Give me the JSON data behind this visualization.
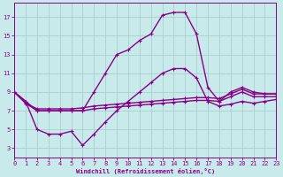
{
  "background_color": "#c8eaea",
  "grid_color": "#aacfcf",
  "line_color": "#880088",
  "xlabel": "Windchill (Refroidissement éolien,°C)",
  "xlim": [
    0,
    23
  ],
  "ylim": [
    2,
    18.5
  ],
  "xticks": [
    0,
    1,
    2,
    3,
    4,
    5,
    6,
    7,
    8,
    9,
    10,
    11,
    12,
    13,
    14,
    15,
    16,
    17,
    18,
    19,
    20,
    21,
    22,
    23
  ],
  "yticks": [
    3,
    5,
    7,
    9,
    11,
    13,
    15,
    17
  ],
  "curve_peak_x": [
    0,
    1,
    2,
    3,
    4,
    5,
    6,
    7,
    8,
    9,
    10,
    11,
    12,
    13,
    14,
    15,
    16,
    17,
    18,
    19,
    20,
    21,
    22,
    23
  ],
  "curve_peak_y": [
    9.0,
    8.0,
    7.0,
    7.0,
    7.0,
    7.0,
    7.0,
    9.0,
    11.0,
    13.0,
    13.5,
    14.5,
    15.2,
    17.2,
    17.5,
    17.5,
    15.2,
    9.5,
    8.0,
    9.0,
    9.5,
    9.0,
    8.8,
    8.8
  ],
  "curve_mid_x": [
    0,
    1,
    2,
    3,
    4,
    5,
    6,
    7,
    8,
    9,
    10,
    11,
    12,
    13,
    14,
    15,
    16,
    17,
    18,
    19,
    20,
    21,
    22,
    23
  ],
  "curve_mid_y": [
    9.0,
    8.0,
    5.0,
    4.5,
    4.5,
    4.8,
    3.3,
    4.5,
    5.8,
    7.0,
    8.0,
    9.0,
    10.0,
    11.0,
    11.5,
    11.5,
    10.5,
    8.0,
    7.5,
    7.7,
    8.0,
    7.8,
    8.0,
    8.2
  ],
  "curve_flat1_x": [
    0,
    1,
    2,
    3,
    4,
    5,
    6,
    7,
    8,
    9,
    10,
    11,
    12,
    13,
    14,
    15,
    16,
    17,
    18,
    19,
    20,
    21,
    22,
    23
  ],
  "curve_flat1_y": [
    9.0,
    7.8,
    7.2,
    7.2,
    7.2,
    7.2,
    7.3,
    7.5,
    7.6,
    7.7,
    7.8,
    7.9,
    8.0,
    8.1,
    8.2,
    8.3,
    8.4,
    8.4,
    8.3,
    8.8,
    9.3,
    8.8,
    8.8,
    8.8
  ],
  "curve_flat2_x": [
    0,
    1,
    2,
    3,
    4,
    5,
    6,
    7,
    8,
    9,
    10,
    11,
    12,
    13,
    14,
    15,
    16,
    17,
    18,
    19,
    20,
    21,
    22,
    23
  ],
  "curve_flat2_y": [
    9.0,
    7.8,
    7.0,
    7.0,
    7.0,
    7.0,
    7.0,
    7.2,
    7.3,
    7.4,
    7.5,
    7.6,
    7.7,
    7.8,
    7.9,
    8.0,
    8.1,
    8.1,
    8.0,
    8.5,
    9.0,
    8.5,
    8.5,
    8.5
  ],
  "lw": 1.0,
  "ms": 3.5
}
